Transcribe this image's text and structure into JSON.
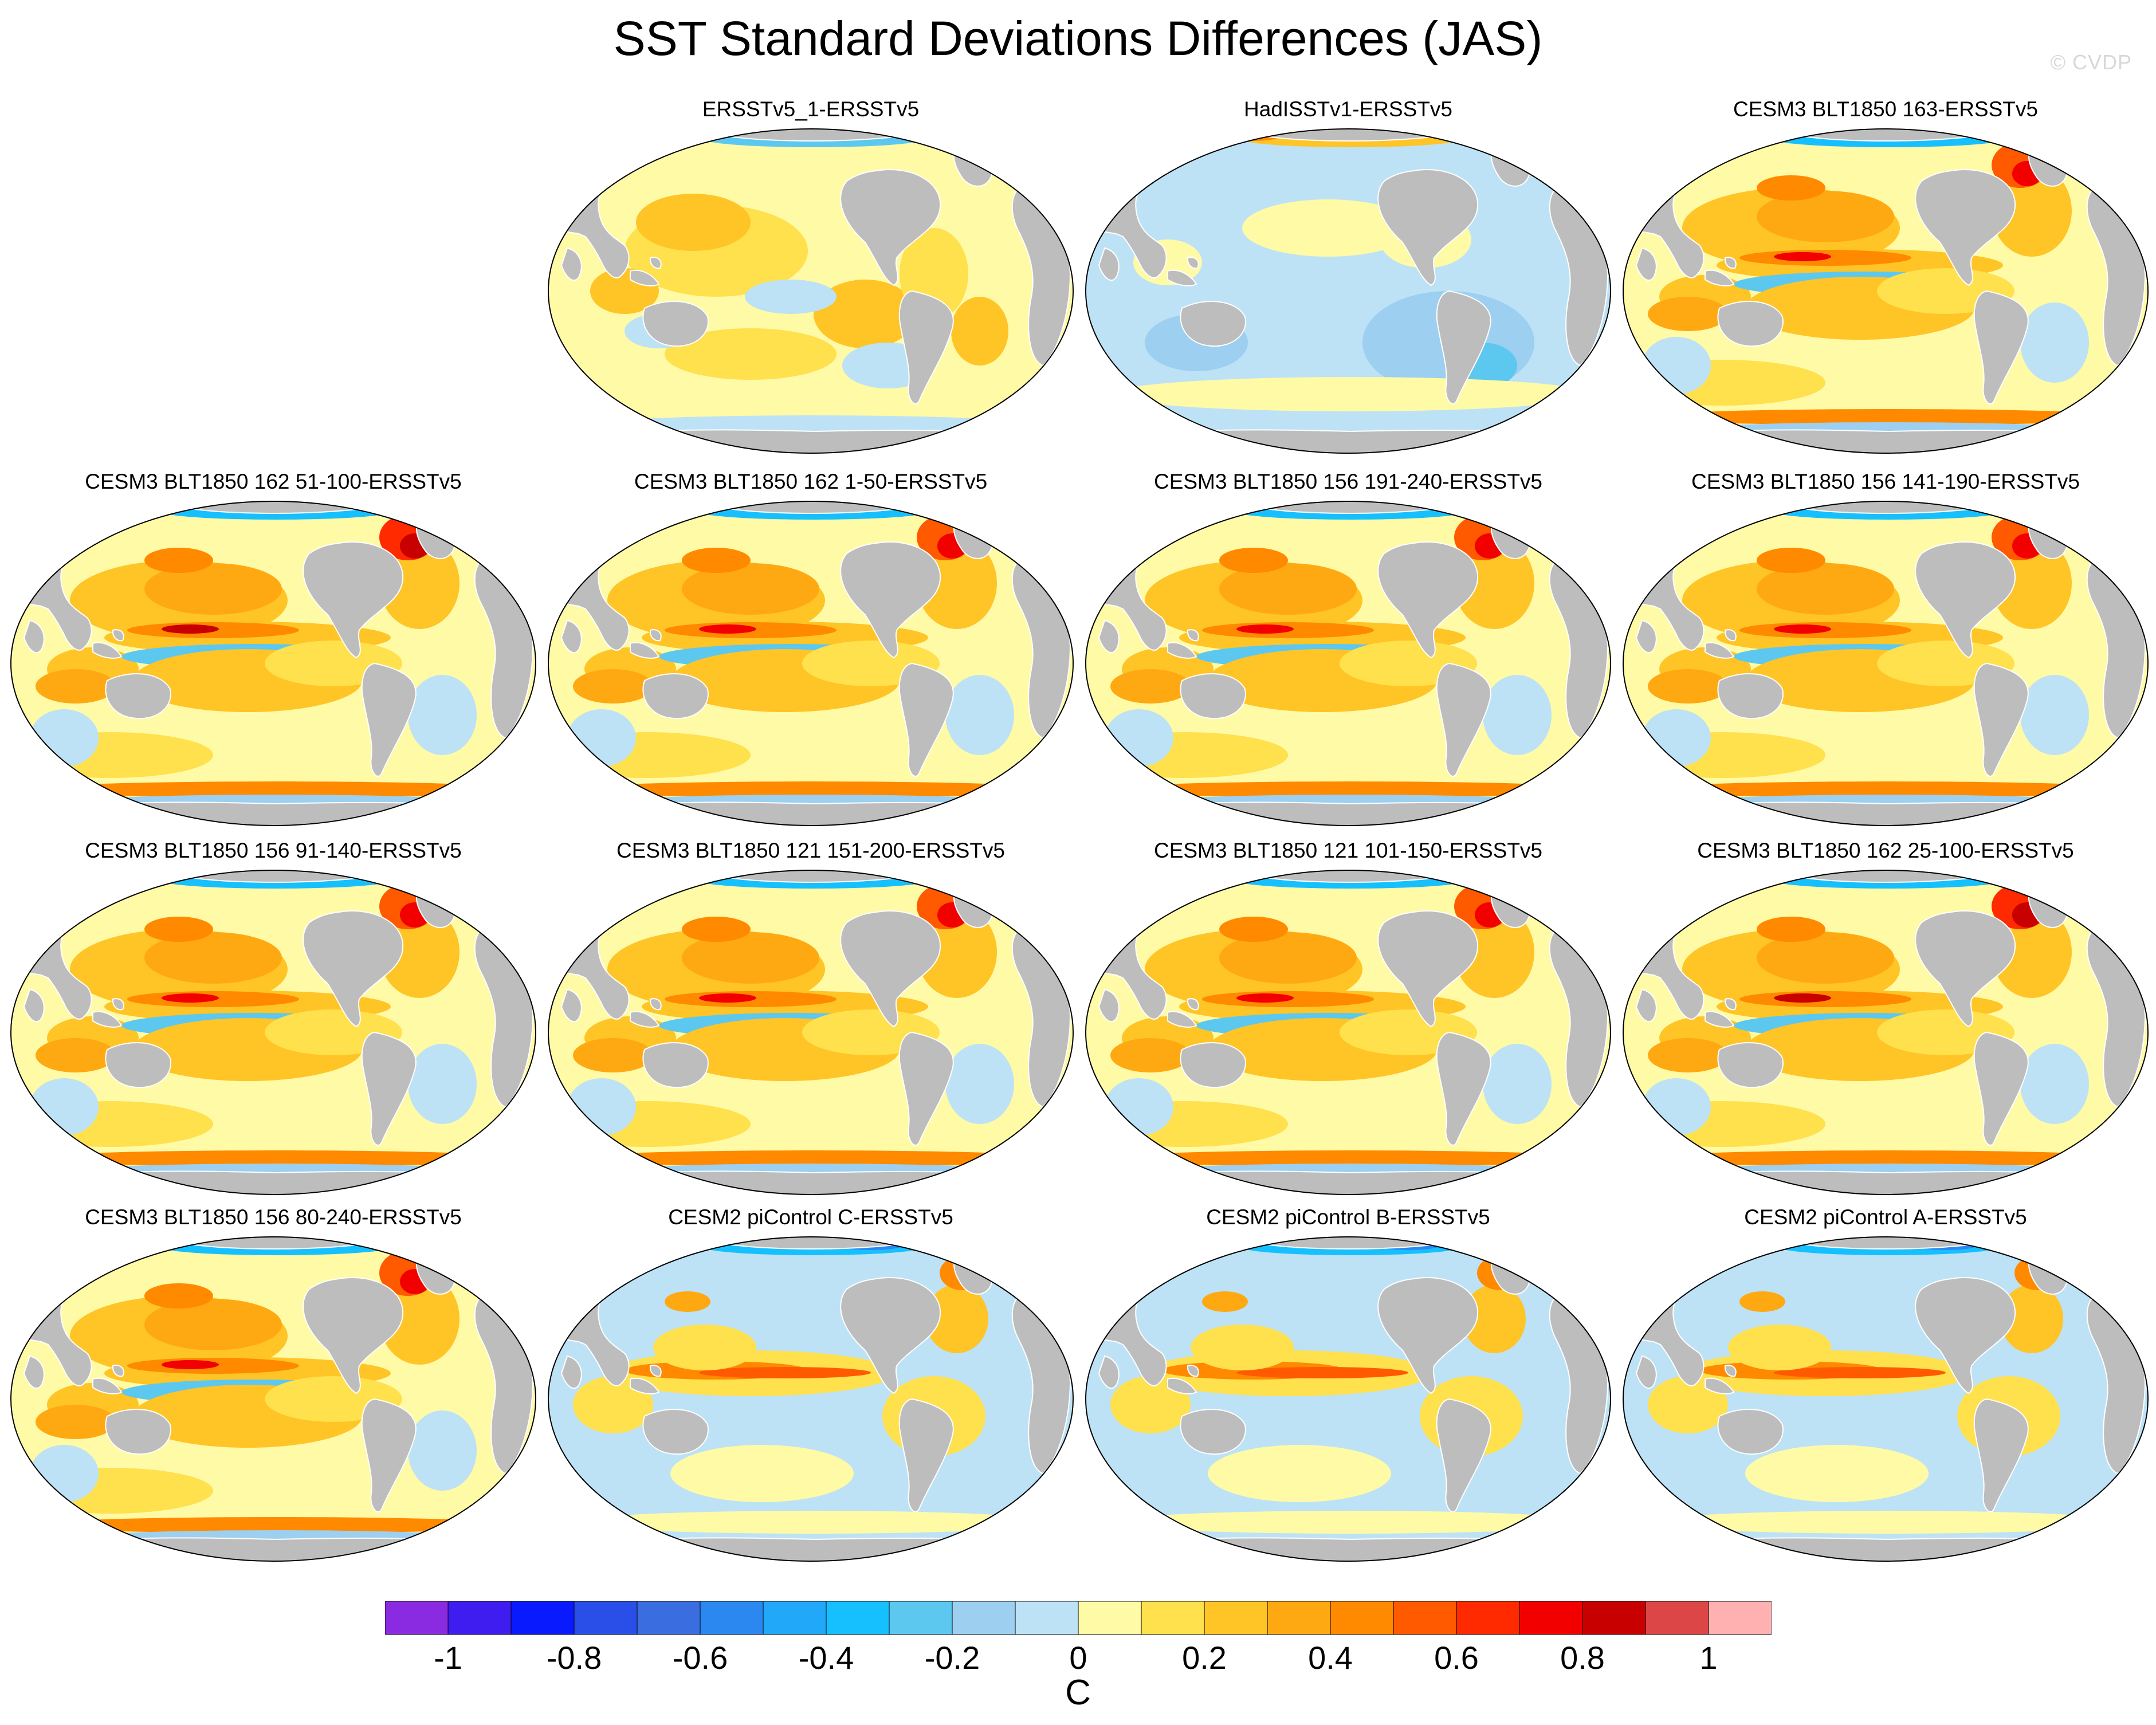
{
  "title": "SST Standard Deviations Differences (JAS)",
  "watermark": "© CVDP",
  "panels": [
    {
      "label": "ERSSTv5_1-ERSSTv5",
      "pattern": "mixed",
      "intensity": 0.35
    },
    {
      "label": "HadISSTv1-ERSSTv5",
      "pattern": "negative",
      "intensity": 0.3
    },
    {
      "label": "CESM3 BLT1850 163-ERSSTv5",
      "pattern": "cesm3",
      "intensity": 0.75
    },
    {
      "label": "CESM3 BLT1850 162 51-100-ERSSTv5",
      "pattern": "cesm3",
      "intensity": 0.95
    },
    {
      "label": "CESM3 BLT1850 162 1-50-ERSSTv5",
      "pattern": "cesm3",
      "intensity": 0.8
    },
    {
      "label": "CESM3 BLT1850 156 191-240-ERSSTv5",
      "pattern": "cesm3",
      "intensity": 0.85
    },
    {
      "label": "CESM3 BLT1850 156 141-190-ERSSTv5",
      "pattern": "cesm3",
      "intensity": 0.85
    },
    {
      "label": "CESM3 BLT1850 156 91-140-ERSSTv5",
      "pattern": "cesm3",
      "intensity": 0.75
    },
    {
      "label": "CESM3 BLT1850 121 151-200-ERSSTv5",
      "pattern": "cesm3",
      "intensity": 0.8
    },
    {
      "label": "CESM3 BLT1850 121 101-150-ERSSTv5",
      "pattern": "cesm3",
      "intensity": 0.7
    },
    {
      "label": "CESM3 BLT1850 162 25-100-ERSSTv5",
      "pattern": "cesm3",
      "intensity": 0.95
    },
    {
      "label": "CESM3 BLT1850 156 80-240-ERSSTv5",
      "pattern": "cesm3",
      "intensity": 0.8
    },
    {
      "label": "CESM2 piControl C-ERSSTv5",
      "pattern": "cesm2",
      "intensity": 0.75
    },
    {
      "label": "CESM2 piControl B-ERSSTv5",
      "pattern": "cesm2",
      "intensity": 0.7
    },
    {
      "label": "CESM2 piControl A-ERSSTv5",
      "pattern": "cesm2",
      "intensity": 0.65
    }
  ],
  "colorbar": {
    "colors": [
      "#8a2be2",
      "#3f1cf0",
      "#0a1aff",
      "#2a4ee8",
      "#3a6ee0",
      "#2b88f0",
      "#22a8f8",
      "#16c0ff",
      "#5cc8f0",
      "#9ccff0",
      "#bde2f6",
      "#fffaa6",
      "#ffe04d",
      "#ffc426",
      "#ffa912",
      "#ff8a00",
      "#ff5a00",
      "#ff2a00",
      "#f20000",
      "#c80000",
      "#dc4646",
      "#ffb0b0"
    ],
    "tick_labels": [
      "-1",
      "-0.8",
      "-0.6",
      "-0.4",
      "-0.2",
      "0",
      "0.2",
      "0.4",
      "0.6",
      "0.8",
      "1"
    ],
    "tick_boundaries": [
      1,
      3,
      5,
      7,
      9,
      11,
      13,
      15,
      17,
      19,
      21
    ],
    "unit_label": "C"
  },
  "land_color": "#bdbdbd",
  "ocean_neutral_color": "#fffaa6"
}
